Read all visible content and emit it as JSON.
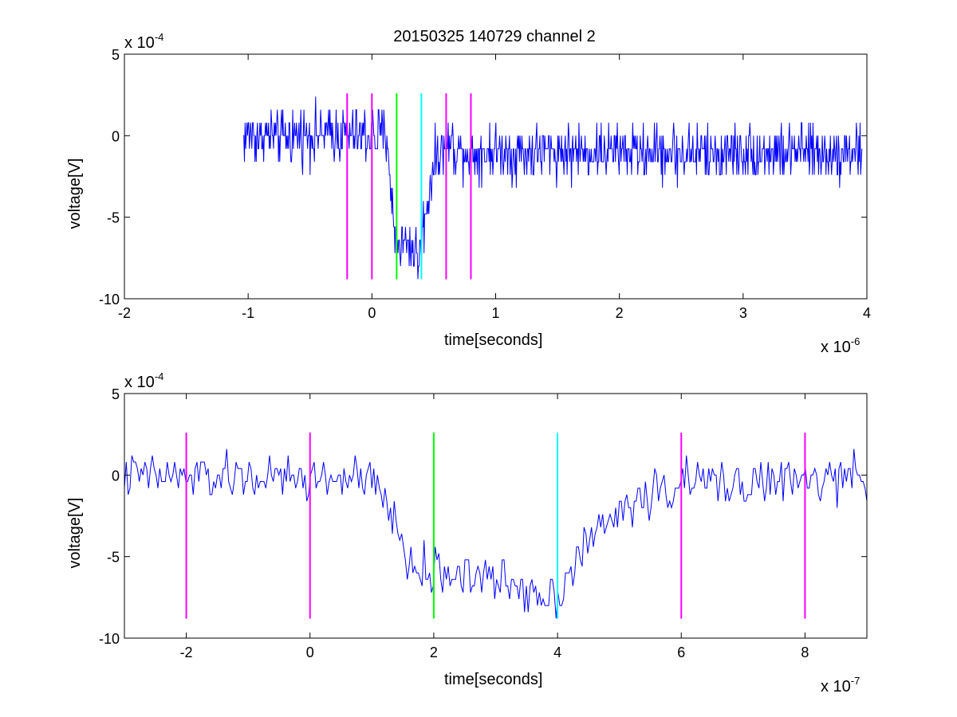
{
  "figure": {
    "title": "20150325 140729 channel 2",
    "marker_colors": {
      "magenta": "#ff00ff",
      "green": "#00ff00",
      "cyan": "#00ffff",
      "trace": "#0000ff"
    }
  },
  "chart_data": [
    {
      "type": "line",
      "title": "20150325 140729 channel 2",
      "xlabel": "time[seconds]",
      "ylabel": "voltage[V]",
      "x_multiplier": "x 10",
      "x_exponent": "-6",
      "y_multiplier": "x 10",
      "y_exponent": "-4",
      "xlim": [
        -2e-06,
        4e-06
      ],
      "ylim": [
        -0.001,
        0.0005
      ],
      "xticks": [
        -2e-06,
        -1e-06,
        0,
        1e-06,
        2e-06,
        3e-06,
        4e-06
      ],
      "xtick_labels": [
        "-2",
        "-1",
        "0",
        "1",
        "2",
        "3",
        "4"
      ],
      "yticks": [
        -0.001,
        -0.0005,
        0,
        0.0005
      ],
      "ytick_labels": [
        "-10",
        "-5",
        "0",
        "5"
      ],
      "grid": false,
      "series": [
        {
          "color": "#0000ff",
          "x_start": -1.04e-06,
          "x_end": 3.96e-06,
          "noise_amplitude": 0.00012,
          "noise_step": 8e-05,
          "envelope": [
            [
              -1.04e-06,
              0
            ],
            [
              1.3e-07,
              0
            ],
            [
              1.6e-07,
              -0.00045
            ],
            [
              2e-07,
              -0.00065
            ],
            [
              3e-07,
              -0.00065
            ],
            [
              3.8e-07,
              -0.00075
            ],
            [
              4.2e-07,
              -0.00055
            ],
            [
              5e-07,
              -0.00015
            ],
            [
              6e-07,
              -5e-05
            ],
            [
              8e-07,
              -0.0001
            ],
            [
              1.5e-06,
              -0.0001
            ],
            [
              3.96e-06,
              -0.0001
            ]
          ]
        }
      ],
      "markers": [
        {
          "x": -2e-07,
          "color": "#ff00ff",
          "y_range": [
            -0.00088,
            0.00026
          ]
        },
        {
          "x": 0.0,
          "color": "#ff00ff",
          "y_range": [
            -0.00088,
            0.00026
          ]
        },
        {
          "x": 2e-07,
          "color": "#00ff00",
          "y_range": [
            -0.00088,
            0.00026
          ]
        },
        {
          "x": 4e-07,
          "color": "#00ffff",
          "y_range": [
            -0.00088,
            0.00026
          ]
        },
        {
          "x": 6e-07,
          "color": "#ff00ff",
          "y_range": [
            -0.00088,
            0.00026
          ]
        },
        {
          "x": 8e-07,
          "color": "#ff00ff",
          "y_range": [
            -0.00088,
            0.00026
          ]
        }
      ]
    },
    {
      "type": "line",
      "title": "",
      "xlabel": "time[seconds]",
      "ylabel": "voltage[V]",
      "x_multiplier": "x 10",
      "x_exponent": "-7",
      "y_multiplier": "x 10",
      "y_exponent": "-4",
      "xlim": [
        -3e-07,
        9e-07
      ],
      "ylim": [
        -0.001,
        0.0005
      ],
      "xticks": [
        -2e-07,
        0,
        2e-07,
        4e-07,
        6e-07,
        8e-07
      ],
      "xtick_labels": [
        "-2",
        "0",
        "2",
        "4",
        "6",
        "8"
      ],
      "yticks": [
        -0.001,
        -0.0005,
        0,
        0.0005
      ],
      "ytick_labels": [
        "-10",
        "-5",
        "0",
        "5"
      ],
      "grid": false,
      "series": [
        {
          "color": "#0000ff",
          "x_start": -3e-07,
          "x_end": 9e-07,
          "noise_amplitude": 0.0001,
          "noise_step": 4e-05,
          "envelope": [
            [
              -3e-07,
              0
            ],
            [
              -1e-07,
              -2e-05
            ],
            [
              5e-08,
              -2e-05
            ],
            [
              1e-07,
              -5e-05
            ],
            [
              1.3e-07,
              -0.0002
            ],
            [
              1.6e-07,
              -0.00055
            ],
            [
              2e-07,
              -0.0006
            ],
            [
              2.5e-07,
              -0.0006
            ],
            [
              3e-07,
              -0.00065
            ],
            [
              3.5e-07,
              -0.0007
            ],
            [
              4e-07,
              -0.00075
            ],
            [
              4.3e-07,
              -0.0005
            ],
            [
              4.8e-07,
              -0.0003
            ],
            [
              5.3e-07,
              -0.00015
            ],
            [
              6e-07,
              -5e-05
            ],
            [
              9e-07,
              -3e-05
            ]
          ]
        }
      ],
      "markers": [
        {
          "x": -2e-07,
          "color": "#ff00ff",
          "y_range": [
            -0.00088,
            0.00026
          ]
        },
        {
          "x": 0.0,
          "color": "#ff00ff",
          "y_range": [
            -0.00088,
            0.00026
          ]
        },
        {
          "x": 2e-07,
          "color": "#00ff00",
          "y_range": [
            -0.00088,
            0.00026
          ]
        },
        {
          "x": 4e-07,
          "color": "#00ffff",
          "y_range": [
            -0.00088,
            0.00026
          ]
        },
        {
          "x": 6e-07,
          "color": "#ff00ff",
          "y_range": [
            -0.00088,
            0.00026
          ]
        },
        {
          "x": 8e-07,
          "color": "#ff00ff",
          "y_range": [
            -0.00088,
            0.00026
          ]
        }
      ]
    }
  ]
}
